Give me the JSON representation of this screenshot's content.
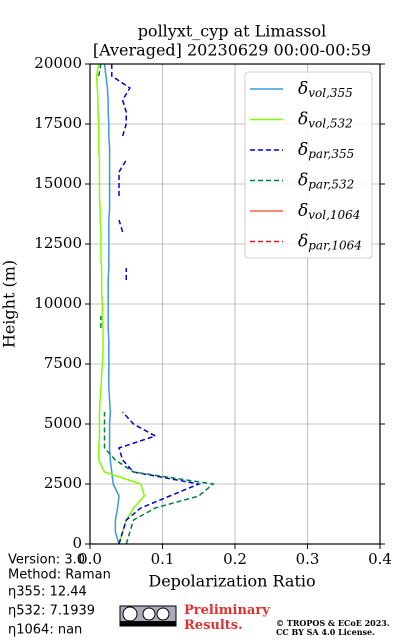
{
  "chart_data": {
    "type": "line",
    "title": "pollyxt_cyp at Limassol",
    "subtitle": "[Averaged] 20230629 00:00-00:59",
    "x_label": "Depolarization Ratio",
    "y_label": "Height (m)",
    "xlim": [
      0,
      0.4
    ],
    "ylim": [
      0,
      20000
    ],
    "xticks": [
      {
        "value": 0,
        "label": "0.0"
      },
      0.1,
      0.2,
      0.3,
      0.4
    ],
    "yticks": [
      0,
      2500,
      5000,
      7500,
      10000,
      12500,
      15000,
      17500,
      20000
    ],
    "grid": true,
    "legend": "upper right",
    "heights": [
      0,
      500,
      1000,
      1500,
      2000,
      2500,
      3000,
      3500,
      4000,
      4500,
      5000,
      5500,
      6000,
      6500,
      7000,
      7500,
      8000,
      8500,
      9000,
      9500,
      10000,
      10500,
      11000,
      11500,
      12000,
      12500,
      13000,
      13500,
      14000,
      14500,
      15000,
      15500,
      16000,
      16500,
      17000,
      17500,
      18000,
      18500,
      19000,
      19500,
      20000
    ],
    "series": [
      {
        "name": "δvol,355",
        "color": "#3a9ad9",
        "dash": false,
        "values": [
          0.04,
          0.035,
          0.035,
          0.038,
          0.04,
          0.032,
          0.03,
          0.028,
          0.027,
          0.027,
          0.027,
          0.028,
          0.027,
          0.026,
          0.026,
          0.026,
          0.026,
          0.026,
          0.025,
          0.025,
          0.025,
          0.025,
          0.025,
          0.026,
          0.026,
          0.026,
          0.026,
          0.026,
          0.027,
          0.027,
          0.027,
          0.027,
          0.027,
          0.027,
          0.026,
          0.026,
          0.025,
          0.025,
          0.024,
          0.022,
          0.02
        ]
      },
      {
        "name": "δvol,532",
        "color": "#80ff00",
        "dash": false,
        "values": [
          0.04,
          0.045,
          0.05,
          0.06,
          0.075,
          0.07,
          0.02,
          0.012,
          0.012,
          0.013,
          0.013,
          0.013,
          0.014,
          0.015,
          0.016,
          0.017,
          0.018,
          0.018,
          0.018,
          0.017,
          0.017,
          0.016,
          0.016,
          0.016,
          0.015,
          0.015,
          0.015,
          0.014,
          0.014,
          0.013,
          0.013,
          0.013,
          0.013,
          0.012,
          0.012,
          0.012,
          0.011,
          0.011,
          0.01,
          0.009,
          0.012
        ]
      },
      {
        "name": "δpar,355",
        "color": "#0000cc",
        "dash": true,
        "values": [
          0.04,
          0.045,
          0.05,
          0.07,
          0.11,
          0.15,
          0.06,
          0.045,
          0.04,
          0.09,
          0.06,
          0.045,
          null,
          null,
          null,
          null,
          null,
          null,
          null,
          null,
          null,
          null,
          0.05,
          0.05,
          null,
          null,
          0.045,
          0.04,
          null,
          0.04,
          0.04,
          0.04,
          0.05,
          null,
          0.045,
          0.05,
          0.05,
          0.045,
          0.055,
          0.03,
          0.03
        ]
      },
      {
        "name": "δpar,532",
        "color": "#008040",
        "dash": true,
        "values": [
          0.05,
          0.055,
          0.06,
          0.09,
          0.15,
          0.17,
          0.06,
          0.035,
          0.02,
          0.02,
          0.02,
          0.02,
          null,
          null,
          null,
          null,
          null,
          null,
          0.015,
          0.015,
          null,
          null,
          null,
          null,
          null,
          null,
          null,
          null,
          null,
          null,
          null,
          null,
          null,
          null,
          null,
          null,
          null,
          null,
          null,
          0.012,
          0.015
        ]
      },
      {
        "name": "δvol,1064",
        "color": "#f4644a",
        "dash": false,
        "values": [
          null,
          null,
          null,
          null,
          null,
          null,
          null,
          null,
          null,
          null,
          null,
          null,
          null,
          null,
          null,
          null,
          null,
          null,
          null,
          null,
          null,
          null,
          null,
          null,
          null,
          null,
          null,
          null,
          null,
          null,
          null,
          null,
          null,
          null,
          null,
          null,
          null,
          null,
          null,
          null,
          null
        ]
      },
      {
        "name": "δpar,1064",
        "color": "#d62020",
        "dash": true,
        "values": [
          null,
          null,
          null,
          null,
          null,
          null,
          null,
          null,
          null,
          null,
          null,
          null,
          null,
          null,
          null,
          null,
          null,
          null,
          null,
          null,
          null,
          null,
          null,
          null,
          null,
          null,
          null,
          null,
          null,
          null,
          null,
          null,
          null,
          null,
          null,
          null,
          null,
          null,
          null,
          null,
          null
        ]
      }
    ],
    "footer": {
      "version": "Version: 3.0",
      "method": "Method: Raman",
      "eta355": "η355:  12.44",
      "eta532": "η532: 7.1939",
      "eta1064": "η1064:    nan",
      "preliminary": "Preliminary Results.",
      "copyright": "© TROPOS & ECoE 2023.",
      "license": "CC BY SA 4.0 License."
    }
  }
}
